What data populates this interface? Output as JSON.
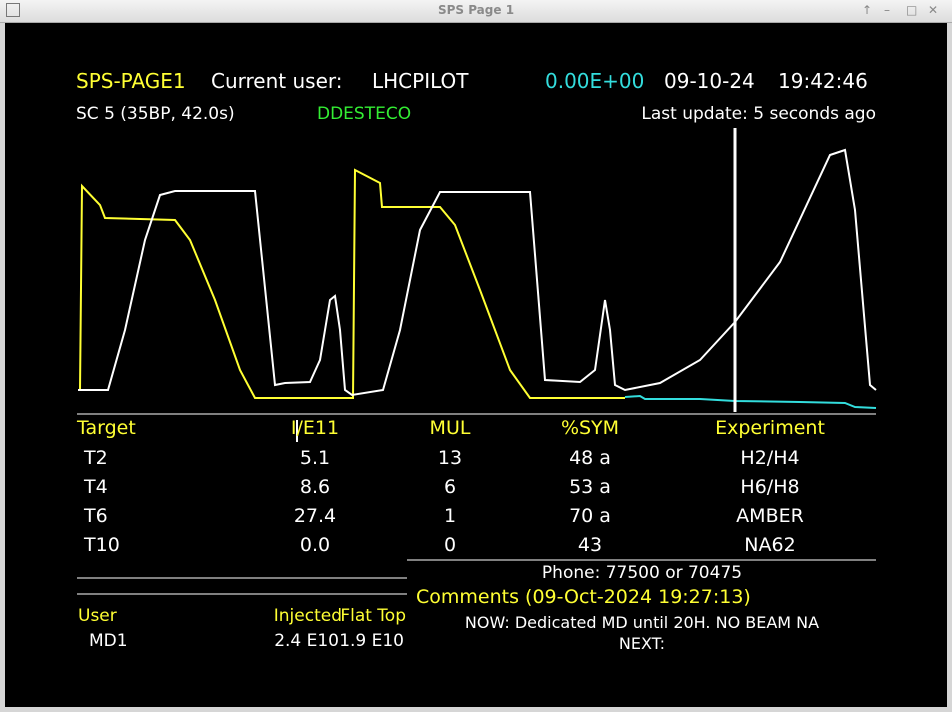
{
  "window": {
    "title": "SPS Page 1"
  },
  "header": {
    "page": "SPS-PAGE1",
    "user_label": "Current user:",
    "user": "LHCPILOT",
    "intensity": "0.00E+00",
    "date": "09-10-24",
    "time": "19:42:46",
    "cycle": "SC 5 (35BP, 42.0s)",
    "status": "DDESTECO",
    "last_update": "Last update: 5 seconds ago"
  },
  "table": {
    "columns": [
      "Target",
      "I/E11",
      "MUL",
      "%SYM",
      "Experiment"
    ],
    "rows": [
      [
        "T2",
        "5.1",
        "13",
        "48 a",
        "H2/H4"
      ],
      [
        "T4",
        "8.6",
        "6",
        "53 a",
        "H6/H8"
      ],
      [
        "T6",
        "27.4",
        "1",
        "70 a",
        "AMBER"
      ],
      [
        "T10",
        "0.0",
        "0",
        "43",
        "NA62"
      ]
    ]
  },
  "phone": "Phone: 77500 or 70475",
  "comments": {
    "title": "Comments (09-Oct-2024 19:27:13)",
    "now": "NOW: Dedicated MD until 20H. NO BEAM NA",
    "next": "NEXT:"
  },
  "users": {
    "columns": [
      "User",
      "Injected",
      "Flat Top"
    ],
    "rows": [
      [
        "MD1",
        "2.4 E10",
        "1.9 E10"
      ]
    ]
  }
}
